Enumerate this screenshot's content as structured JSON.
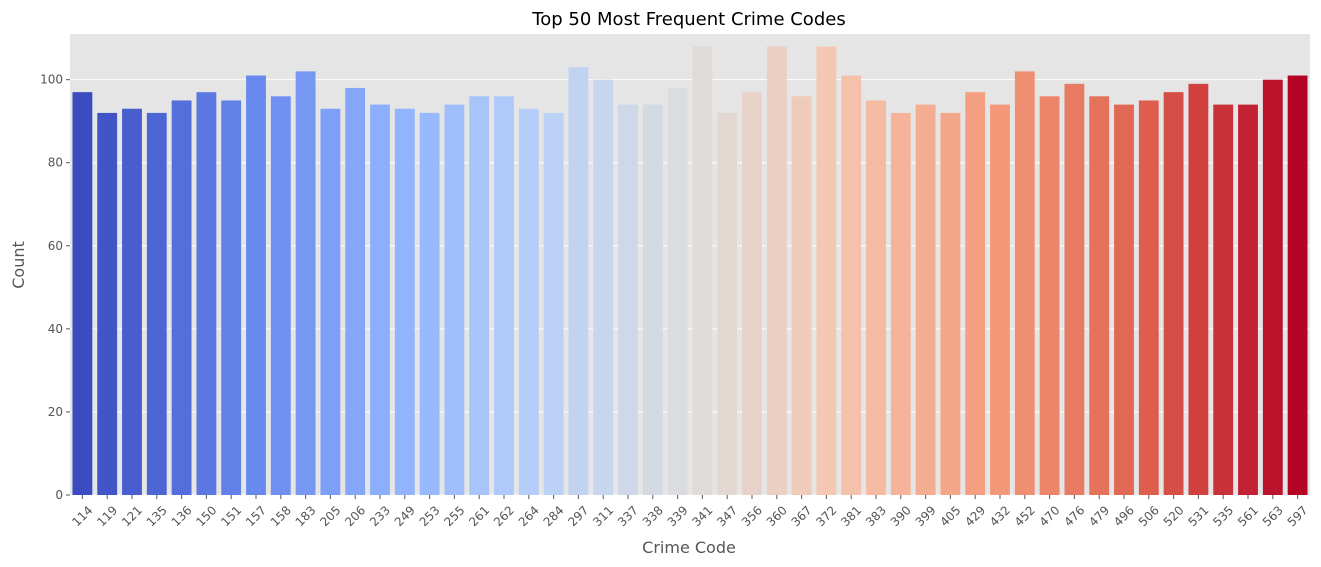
{
  "chart_data": {
    "type": "bar",
    "title": "Top 50 Most Frequent Crime Codes",
    "xlabel": "Crime Code",
    "ylabel": "Count",
    "ylim": [
      0,
      111
    ],
    "yticks": [
      0,
      20,
      40,
      60,
      80,
      100
    ],
    "grid": true,
    "legend": "none",
    "palette": "coolwarm",
    "colors": {
      "plot_background": "#e5e5e5",
      "grid": "#ffffff",
      "text": "#555555",
      "title": "#000000"
    },
    "categories": [
      "114",
      "119",
      "121",
      "135",
      "136",
      "150",
      "151",
      "157",
      "158",
      "183",
      "205",
      "206",
      "233",
      "249",
      "253",
      "255",
      "261",
      "262",
      "264",
      "284",
      "297",
      "311",
      "337",
      "338",
      "339",
      "341",
      "347",
      "356",
      "360",
      "367",
      "372",
      "381",
      "383",
      "390",
      "399",
      "405",
      "429",
      "432",
      "452",
      "470",
      "476",
      "479",
      "496",
      "506",
      "520",
      "531",
      "535",
      "561",
      "563",
      "597"
    ],
    "values": [
      97,
      92,
      93,
      92,
      95,
      97,
      95,
      101,
      96,
      102,
      93,
      98,
      94,
      93,
      92,
      94,
      96,
      96,
      93,
      92,
      103,
      100,
      94,
      94,
      98,
      108,
      92,
      97,
      108,
      96,
      108,
      101,
      95,
      92,
      94,
      92,
      97,
      94,
      102,
      96,
      99,
      96,
      94,
      95,
      97,
      99,
      94,
      94,
      100,
      101
    ]
  }
}
